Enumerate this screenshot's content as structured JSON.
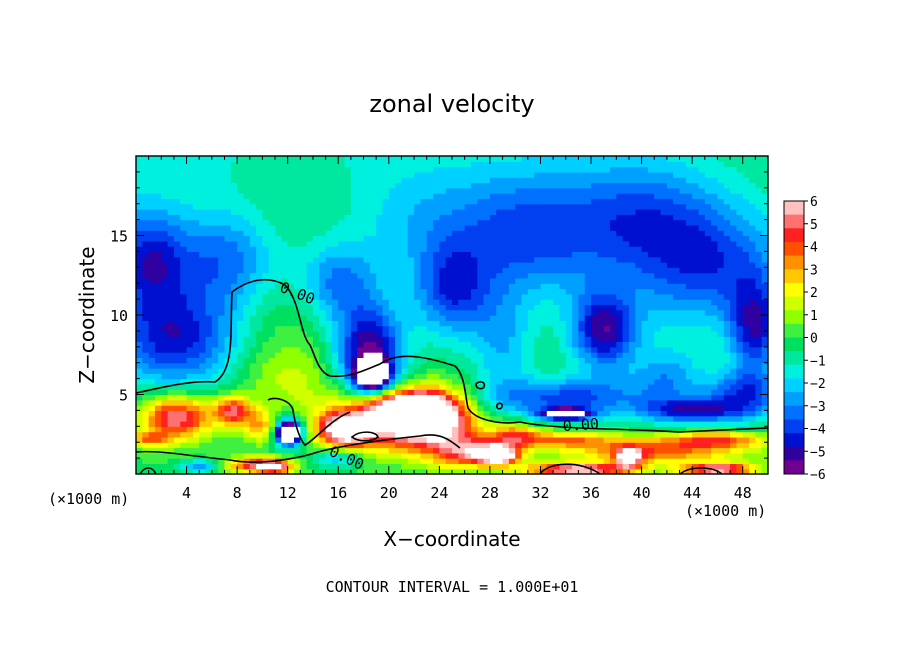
{
  "chart_data": {
    "type": "heatmap",
    "title": "zonal velocity",
    "xlabel": "X−coordinate",
    "ylabel": "Z−coordinate",
    "x_unit_left": "(×1000 m)",
    "x_unit_right": "(×1000 m)",
    "footer": "CONTOUR INTERVAL = 1.000E+01",
    "xlim": [
      0,
      50
    ],
    "ylim": [
      0,
      20
    ],
    "x_ticks": [
      4,
      8,
      12,
      16,
      20,
      24,
      28,
      32,
      36,
      40,
      44,
      48
    ],
    "y_ticks": [
      5,
      10,
      15
    ],
    "contour_labels": [
      {
        "text": "0.00",
        "x": 11.3,
        "y": 11.5
      },
      {
        "text": "0.00",
        "x": 15.2,
        "y": 1.2
      },
      {
        "text": "0.00",
        "x": 33.8,
        "y": 2.7
      }
    ],
    "colorbar": {
      "min": -6,
      "max": 6,
      "labels": [
        "6",
        "5",
        "4",
        "3",
        "2",
        "1",
        "0",
        "−1",
        "−2",
        "−3",
        "−4",
        "−5",
        "−6"
      ],
      "colors": [
        "#ffc0c0",
        "#ff7070",
        "#ff2020",
        "#ff5000",
        "#ff9000",
        "#ffc800",
        "#ffff00",
        "#d0ff00",
        "#90ff00",
        "#40f040",
        "#00e060",
        "#00e8a0",
        "#00f0e0",
        "#00d0ff",
        "#00a0ff",
        "#0070ff",
        "#0040f0",
        "#0010d0",
        "#3000a0",
        "#700090"
      ]
    },
    "blobs": [
      {
        "x": 0,
        "y": 20,
        "rx": 50,
        "ry": 10,
        "v": -1.4
      },
      {
        "x": 9,
        "y": 17.5,
        "rx": 9,
        "ry": 3.5,
        "v": 0.2
      },
      {
        "x": 14,
        "y": 16.5,
        "rx": 6,
        "ry": 3,
        "v": 0.6
      },
      {
        "x": 22,
        "y": 16,
        "rx": 6,
        "ry": 3.5,
        "v": -1.2
      },
      {
        "x": 31,
        "y": 15,
        "rx": 6,
        "ry": 4,
        "v": -3
      },
      {
        "x": 40,
        "y": 16,
        "rx": 6,
        "ry": 4,
        "v": -2.8
      },
      {
        "x": 46,
        "y": 13,
        "rx": 6,
        "ry": 4,
        "v": -3.2
      },
      {
        "x": 3,
        "y": 8.5,
        "rx": 5,
        "ry": 3.2,
        "v": -4.2
      },
      {
        "x": 1,
        "y": 13.5,
        "rx": 3,
        "ry": 3,
        "v": -3.5
      },
      {
        "x": 7,
        "y": 13.5,
        "rx": 4,
        "ry": 3,
        "v": -2.5
      },
      {
        "x": 11.8,
        "y": 9,
        "rx": 3.5,
        "ry": 3.5,
        "v": 0.8
      },
      {
        "x": 18.5,
        "y": 7.5,
        "rx": 2.6,
        "ry": 3,
        "v": -5.5
      },
      {
        "x": 18.7,
        "y": 6.2,
        "rx": 1.3,
        "ry": 0.9,
        "v": -7
      },
      {
        "x": 16,
        "y": 12,
        "rx": 3,
        "ry": 2.5,
        "v": -2.5
      },
      {
        "x": 25,
        "y": 11.5,
        "rx": 3,
        "ry": 3,
        "v": -3.3
      },
      {
        "x": 29,
        "y": 8,
        "rx": 2.5,
        "ry": 3.5,
        "v": -2
      },
      {
        "x": 37,
        "y": 9,
        "rx": 2.6,
        "ry": 2.5,
        "v": -4.8
      },
      {
        "x": 41.5,
        "y": 10.5,
        "rx": 2.5,
        "ry": 2.5,
        "v": -0.3
      },
      {
        "x": 42,
        "y": 6,
        "rx": 3,
        "ry": 2,
        "v": -2.5
      },
      {
        "x": 48,
        "y": 5,
        "rx": 3,
        "ry": 1.5,
        "v": -3.6
      },
      {
        "x": 49,
        "y": 9,
        "rx": 2,
        "ry": 3,
        "v": -4
      },
      {
        "x": 34,
        "y": 4.8,
        "rx": 6,
        "ry": 1.3,
        "v": -3.7
      },
      {
        "x": 34,
        "y": 3.8,
        "rx": 2,
        "ry": 0.4,
        "v": -6
      },
      {
        "x": 44,
        "y": 4,
        "rx": 4,
        "ry": 0.8,
        "v": -3.8
      },
      {
        "x": 12,
        "y": 6,
        "rx": 4,
        "ry": 2,
        "v": 1.2
      },
      {
        "x": 24,
        "y": 5.5,
        "rx": 2.5,
        "ry": 1.2,
        "v": 0.8
      },
      {
        "x": 3.2,
        "y": 3.6,
        "rx": 2.8,
        "ry": 1.4,
        "v": 5.8
      },
      {
        "x": 7.7,
        "y": 4,
        "rx": 1.5,
        "ry": 0.9,
        "v": 5
      },
      {
        "x": 1,
        "y": 2.2,
        "rx": 1.5,
        "ry": 0.5,
        "v": 3
      },
      {
        "x": 10,
        "y": 3,
        "rx": 1.5,
        "ry": 1,
        "v": 3
      },
      {
        "x": 12,
        "y": 2.7,
        "rx": 1.2,
        "ry": 1,
        "v": -6
      },
      {
        "x": 12.1,
        "y": 2.6,
        "rx": 0.8,
        "ry": 0.5,
        "v": -8
      },
      {
        "x": 20,
        "y": 3.4,
        "rx": 5,
        "ry": 1.8,
        "v": 6.5
      },
      {
        "x": 22,
        "y": 4.2,
        "rx": 3,
        "ry": 1,
        "v": 6.8
      },
      {
        "x": 24,
        "y": 3,
        "rx": 3,
        "ry": 1.6,
        "v": 4
      },
      {
        "x": 16.5,
        "y": 2.8,
        "rx": 2,
        "ry": 1,
        "v": 5.5
      },
      {
        "x": 27,
        "y": 1.4,
        "rx": 3,
        "ry": 0.9,
        "v": 5
      },
      {
        "x": 28.7,
        "y": 1.2,
        "rx": 1.3,
        "ry": 0.5,
        "v": 7
      },
      {
        "x": 30,
        "y": 2.5,
        "rx": 2,
        "ry": 0.8,
        "v": 3.5
      },
      {
        "x": 34,
        "y": 2.2,
        "rx": 4,
        "ry": 0.5,
        "v": 3
      },
      {
        "x": 41,
        "y": 1.5,
        "rx": 7,
        "ry": 0.8,
        "v": 4
      },
      {
        "x": 46,
        "y": 2.2,
        "rx": 4,
        "ry": 0.5,
        "v": 3.5
      },
      {
        "x": 39,
        "y": 1,
        "rx": 1,
        "ry": 0.6,
        "v": 6
      },
      {
        "x": 16,
        "y": 1,
        "rx": 2,
        "ry": 0.6,
        "v": -2.5
      },
      {
        "x": 9,
        "y": 0.6,
        "rx": 2,
        "ry": 0.5,
        "v": 4
      },
      {
        "x": 11,
        "y": 0.5,
        "rx": 1.5,
        "ry": 0.5,
        "v": 5.5
      },
      {
        "x": 5,
        "y": 0.5,
        "rx": 1.5,
        "ry": 0.4,
        "v": -3
      },
      {
        "x": 35,
        "y": 0.3,
        "rx": 4,
        "ry": 0.4,
        "v": 6.5
      },
      {
        "x": 46,
        "y": 0.3,
        "rx": 3,
        "ry": 0.4,
        "v": 6
      },
      {
        "x": 24,
        "y": 0.6,
        "rx": 2,
        "ry": 0.5,
        "v": 0.5
      }
    ]
  }
}
